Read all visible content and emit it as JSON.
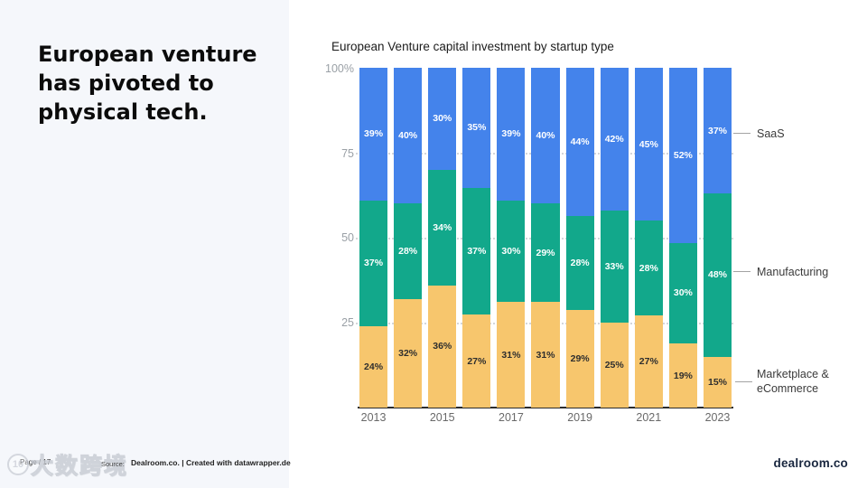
{
  "left_panel": {
    "headline_lines": [
      "European venture",
      "has pivoted to",
      "physical tech."
    ]
  },
  "chart": {
    "title": "European Venture capital investment by startup type",
    "y_ticks": [
      "100%",
      "75",
      "50",
      "25"
    ],
    "legend": {
      "saas": "SaaS",
      "manufacturing": "Manufacturing",
      "marketplace_line1": "Marketplace &",
      "marketplace_line2": "eCommerce"
    }
  },
  "chart_data": {
    "type": "bar",
    "stacked": true,
    "title": "European Venture capital investment by startup type",
    "categories": [
      "2013",
      "2014",
      "2015",
      "2016",
      "2017",
      "2018",
      "2019",
      "2020",
      "2021",
      "2022",
      "2023"
    ],
    "x_ticks_shown": [
      "2013",
      "2015",
      "2017",
      "2019",
      "2021",
      "2023"
    ],
    "ylim": [
      0,
      100
    ],
    "y_tick_labels": [
      "100%",
      "75",
      "50",
      "25"
    ],
    "legend_position": "right",
    "grid": "dotted horizontal at 25/50/75",
    "series": [
      {
        "name": "Marketplace & eCommerce",
        "color": "#f7c66d",
        "label_color": "#2e2e2e",
        "values": [
          24,
          32,
          36,
          27,
          31,
          31,
          29,
          25,
          27,
          19,
          15
        ]
      },
      {
        "name": "Manufacturing",
        "color": "#12a88b",
        "label_color": "#ffffff",
        "values": [
          37,
          28,
          34,
          37,
          30,
          29,
          28,
          33,
          28,
          30,
          48
        ]
      },
      {
        "name": "SaaS",
        "color": "#4483eb",
        "label_color": "#ffffff",
        "values": [
          39,
          40,
          30,
          35,
          39,
          40,
          44,
          42,
          45,
          52,
          37
        ]
      }
    ]
  },
  "footer": {
    "page": "Page / 17",
    "source_label": "Source:",
    "source_text": "Dealroom.co. | Created with datawrapper.de",
    "brand": "dealroom.co",
    "watermark_text": "大数跨境"
  },
  "colors": {
    "background": "#ffffff",
    "left_panel_bg": "#f5f7fb",
    "saas": "#4483eb",
    "manufacturing": "#12a88b",
    "marketplace": "#f7c66d"
  }
}
